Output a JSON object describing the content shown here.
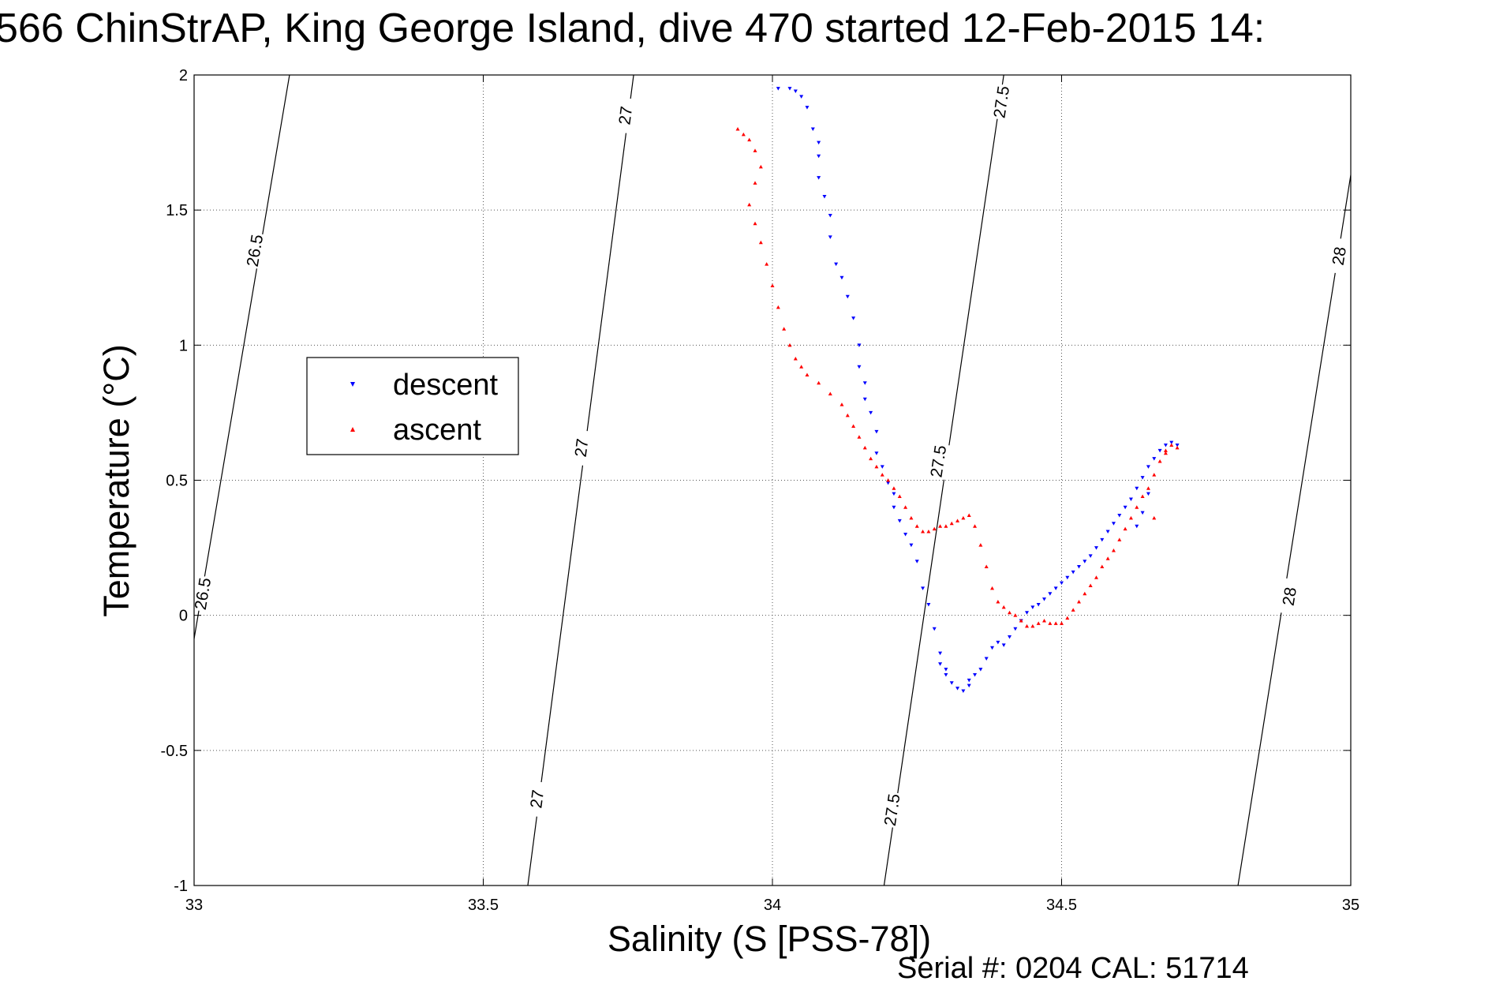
{
  "title": "566 ChinStrAP, King George Island, dive 470 started 12-Feb-2015 14:",
  "serial_text": "Serial #: 0204  CAL: 51714",
  "chart_data": {
    "type": "scatter",
    "xlabel": "Salinity (S [PSS-78])",
    "ylabel": "Temperature (°C)",
    "xlim": [
      33,
      35
    ],
    "ylim": [
      -1,
      2
    ],
    "xticks": [
      {
        "value": 33,
        "label": "33"
      },
      {
        "value": 33.5,
        "label": "33.5"
      },
      {
        "value": 34,
        "label": "34"
      },
      {
        "value": 34.5,
        "label": "34.5"
      },
      {
        "value": 35,
        "label": "35"
      }
    ],
    "yticks": [
      {
        "value": -1,
        "label": "-1"
      },
      {
        "value": -0.5,
        "label": "-0.5"
      },
      {
        "value": 0,
        "label": "0"
      },
      {
        "value": 0.5,
        "label": "0.5"
      },
      {
        "value": 1,
        "label": "1"
      },
      {
        "value": 1.5,
        "label": "1.5"
      },
      {
        "value": 2,
        "label": "2"
      }
    ],
    "grid": true,
    "legend_position": "left",
    "contours": [
      {
        "label": "26.5",
        "points": [
          [
            32.995,
            -0.15
          ],
          [
            33.165,
            2.0
          ]
        ],
        "label_at": [
          [
            33.105,
            1.35
          ],
          [
            33.015,
            0.08
          ]
        ]
      },
      {
        "label": "27",
        "points": [
          [
            33.577,
            -1.0
          ],
          [
            33.76,
            2.0
          ]
        ],
        "label_at": [
          [
            33.746,
            1.85
          ],
          [
            33.67,
            0.62
          ],
          [
            33.593,
            -0.68
          ]
        ]
      },
      {
        "label": "27.5",
        "points": [
          [
            34.193,
            -1.0
          ],
          [
            34.4,
            2.0
          ]
        ],
        "label_at": [
          [
            34.396,
            1.9
          ],
          [
            34.287,
            0.57
          ],
          [
            34.207,
            -0.72
          ]
        ]
      },
      {
        "label": "28",
        "points": [
          [
            34.805,
            -1.0
          ],
          [
            35.0,
            1.63
          ]
        ],
        "label_at": [
          [
            34.98,
            1.33
          ],
          [
            34.894,
            0.07
          ]
        ]
      }
    ],
    "series": [
      {
        "name": "descent",
        "color": "#0000ff",
        "marker": "triangle-down",
        "x": [
          34.01,
          34.03,
          34.04,
          34.05,
          34.06,
          34.07,
          34.08,
          34.08,
          34.08,
          34.09,
          34.1,
          34.1,
          34.11,
          34.12,
          34.13,
          34.14,
          34.15,
          34.15,
          34.16,
          34.16,
          34.17,
          34.18,
          34.18,
          34.19,
          34.2,
          34.21,
          34.21,
          34.22,
          34.23,
          34.24,
          34.25,
          34.26,
          34.27,
          34.28,
          34.29,
          34.29,
          34.3,
          34.3,
          34.31,
          34.32,
          34.33,
          34.34,
          34.34,
          34.35,
          34.36,
          34.37,
          34.38,
          34.39,
          34.4,
          34.41,
          34.42,
          34.43,
          34.44,
          34.45,
          34.46,
          34.47,
          34.48,
          34.49,
          34.5,
          34.51,
          34.52,
          34.53,
          34.54,
          34.55,
          34.56,
          34.57,
          34.58,
          34.59,
          34.6,
          34.61,
          34.62,
          34.63,
          34.64,
          34.65,
          34.66,
          34.67,
          34.68,
          34.69,
          34.7,
          34.65,
          34.64,
          34.63
        ],
        "y": [
          1.95,
          1.95,
          1.94,
          1.92,
          1.88,
          1.8,
          1.75,
          1.7,
          1.62,
          1.55,
          1.48,
          1.4,
          1.3,
          1.25,
          1.18,
          1.1,
          1.0,
          0.92,
          0.86,
          0.8,
          0.75,
          0.68,
          0.6,
          0.55,
          0.49,
          0.45,
          0.4,
          0.35,
          0.3,
          0.26,
          0.2,
          0.1,
          0.04,
          -0.05,
          -0.14,
          -0.18,
          -0.2,
          -0.22,
          -0.25,
          -0.27,
          -0.28,
          -0.26,
          -0.24,
          -0.22,
          -0.2,
          -0.16,
          -0.12,
          -0.1,
          -0.11,
          -0.08,
          -0.05,
          -0.02,
          0.01,
          0.03,
          0.04,
          0.06,
          0.08,
          0.1,
          0.12,
          0.14,
          0.16,
          0.18,
          0.2,
          0.22,
          0.25,
          0.28,
          0.31,
          0.34,
          0.37,
          0.4,
          0.43,
          0.47,
          0.51,
          0.55,
          0.58,
          0.61,
          0.63,
          0.64,
          0.63,
          0.45,
          0.38,
          0.33
        ]
      },
      {
        "name": "ascent",
        "color": "#ff0000",
        "marker": "triangle-up",
        "x": [
          33.94,
          33.95,
          33.96,
          33.97,
          33.98,
          33.97,
          33.96,
          33.97,
          33.98,
          33.99,
          34.0,
          34.01,
          34.02,
          34.03,
          34.04,
          34.05,
          34.06,
          34.08,
          34.1,
          34.12,
          34.13,
          34.14,
          34.15,
          34.16,
          34.17,
          34.18,
          34.19,
          34.2,
          34.21,
          34.22,
          34.23,
          34.24,
          34.25,
          34.26,
          34.27,
          34.28,
          34.29,
          34.3,
          34.31,
          34.32,
          34.33,
          34.34,
          34.35,
          34.36,
          34.37,
          34.38,
          34.39,
          34.4,
          34.41,
          34.42,
          34.43,
          34.44,
          34.45,
          34.46,
          34.47,
          34.48,
          34.49,
          34.5,
          34.51,
          34.52,
          34.53,
          34.54,
          34.55,
          34.56,
          34.57,
          34.58,
          34.59,
          34.6,
          34.61,
          34.62,
          34.63,
          34.64,
          34.65,
          34.66,
          34.67,
          34.68,
          34.69,
          34.7,
          34.68,
          34.66
        ],
        "y": [
          1.8,
          1.78,
          1.76,
          1.72,
          1.66,
          1.6,
          1.52,
          1.45,
          1.38,
          1.3,
          1.22,
          1.14,
          1.06,
          1.0,
          0.95,
          0.92,
          0.89,
          0.86,
          0.82,
          0.78,
          0.74,
          0.7,
          0.66,
          0.62,
          0.58,
          0.55,
          0.52,
          0.5,
          0.47,
          0.44,
          0.4,
          0.36,
          0.33,
          0.31,
          0.31,
          0.32,
          0.33,
          0.33,
          0.34,
          0.35,
          0.36,
          0.37,
          0.33,
          0.26,
          0.18,
          0.1,
          0.05,
          0.03,
          0.01,
          0.0,
          -0.02,
          -0.04,
          -0.04,
          -0.03,
          -0.02,
          -0.03,
          -0.03,
          -0.03,
          -0.01,
          0.02,
          0.05,
          0.08,
          0.11,
          0.14,
          0.18,
          0.21,
          0.24,
          0.28,
          0.32,
          0.36,
          0.4,
          0.44,
          0.47,
          0.52,
          0.57,
          0.61,
          0.63,
          0.62,
          0.6,
          0.36
        ]
      }
    ]
  }
}
